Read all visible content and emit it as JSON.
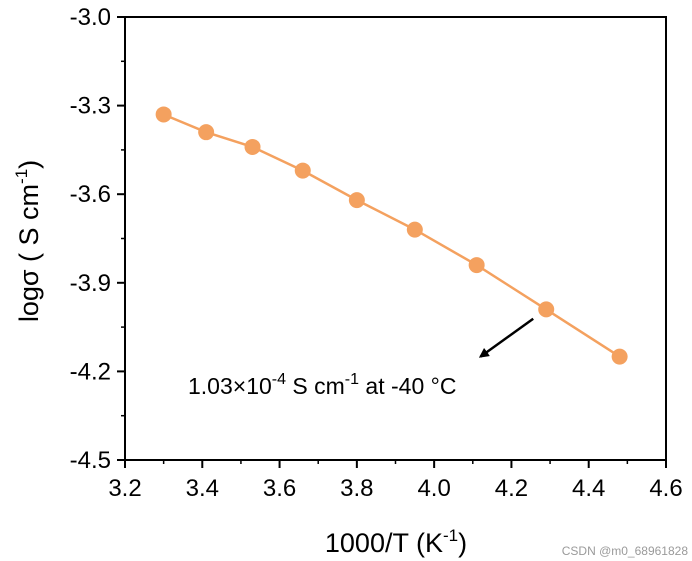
{
  "chart_data": {
    "type": "line",
    "xlabel": {
      "main": "1000/T (K",
      "sup": "-1",
      "end": ")"
    },
    "ylabel": {
      "main": "logσ ( S cm",
      "sup": "-1",
      "end": ")"
    },
    "xlim": [
      3.2,
      4.6
    ],
    "ylim": [
      -4.5,
      -3.0
    ],
    "xticks": [
      "3.2",
      "3.4",
      "3.6",
      "3.8",
      "4.0",
      "4.2",
      "4.4",
      "4.6"
    ],
    "yticks": [
      "-3.0",
      "-3.3",
      "-3.6",
      "-3.9",
      "-4.2",
      "-4.5"
    ],
    "grid": false,
    "series": [
      {
        "color": "#F4A15F",
        "marker": "circle",
        "x": [
          3.3,
          3.41,
          3.53,
          3.66,
          3.8,
          3.95,
          4.11,
          4.29,
          4.48
        ],
        "y": [
          -3.33,
          -3.39,
          -3.44,
          -3.52,
          -3.62,
          -3.72,
          -3.84,
          -3.99,
          -4.15
        ]
      }
    ],
    "annotation": {
      "text_main": "1.03×10",
      "text_sup1": "-4",
      "text_mid": " S cm",
      "text_sup2": "-1",
      "text_end": " at  -40 °C",
      "arrow_from": [
        4.29,
        -3.99
      ],
      "arrow_to": [
        4.12,
        -4.15
      ],
      "arrow_color": "#000000"
    }
  },
  "watermark": "CSDN @m0_68961828"
}
